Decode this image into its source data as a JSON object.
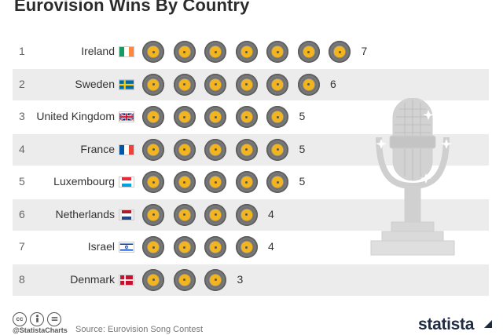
{
  "title": "Eurovision Wins By Country",
  "chart_data": {
    "type": "bar",
    "title": "Eurovision Wins By Country",
    "categories": [
      "Ireland",
      "Sweden",
      "United Kingdom",
      "France",
      "Luxembourg",
      "Netherlands",
      "Israel",
      "Denmark"
    ],
    "ranks": [
      "1",
      "2",
      "3",
      "4",
      "5",
      "6",
      "7",
      "8"
    ],
    "values": [
      7,
      6,
      5,
      5,
      5,
      4,
      4,
      3
    ],
    "orientation": "horizontal",
    "mark": "record-disc pictogram",
    "flags": [
      "ireland-flag-icon",
      "sweden-flag-icon",
      "uk-flag-icon",
      "france-flag-icon",
      "luxembourg-flag-icon",
      "netherlands-flag-icon",
      "israel-flag-icon",
      "denmark-flag-icon"
    ],
    "colors": {
      "disc_center": "#f2b51f",
      "disc_vinyl": "#6c6c6c",
      "row_shade": "#ececec"
    }
  },
  "footer": {
    "handle": "@StatistaCharts",
    "source": "Source: Eurovision Song Contest",
    "brand": "statista",
    "license_icons": [
      "cc-icon",
      "by-icon",
      "nd-icon"
    ]
  }
}
